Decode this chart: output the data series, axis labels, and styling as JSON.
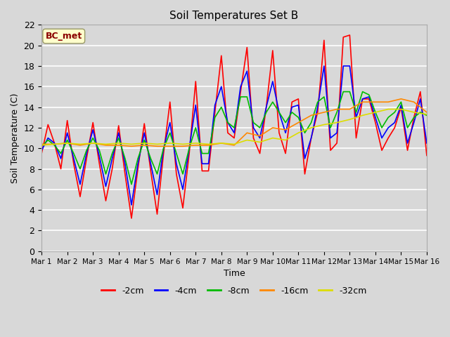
{
  "title": "Soil Temperatures Set B",
  "xlabel": "Time",
  "ylabel": "Soil Temperature (C)",
  "annotation": "BC_met",
  "ylim": [
    0,
    22
  ],
  "xlim": [
    0,
    15
  ],
  "x_tick_labels": [
    "Mar 1",
    "Mar 2",
    "Mar 3",
    "Mar 4",
    "Mar 5",
    "Mar 6",
    "Mar 7",
    "Mar 8",
    "Mar 9",
    "Mar 10",
    "Mar 11",
    "Mar 12",
    "Mar 13",
    "Mar 14",
    "Mar 15",
    "Mar 16"
  ],
  "fig_facecolor": "#d8d8d8",
  "plot_facecolor": "#d8d8d8",
  "grid_color": "#ffffff",
  "series": [
    {
      "label": "-2cm",
      "color": "#ff0000",
      "x": [
        0,
        0.25,
        0.5,
        0.75,
        1.0,
        1.25,
        1.5,
        1.75,
        2.0,
        2.25,
        2.5,
        2.75,
        3.0,
        3.25,
        3.5,
        3.75,
        4.0,
        4.25,
        4.5,
        4.75,
        5.0,
        5.25,
        5.5,
        5.75,
        6.0,
        6.25,
        6.5,
        6.75,
        7.0,
        7.25,
        7.5,
        7.75,
        8.0,
        8.25,
        8.5,
        8.75,
        9.0,
        9.25,
        9.5,
        9.75,
        10.0,
        10.25,
        10.5,
        10.75,
        11.0,
        11.25,
        11.5,
        11.75,
        12.0,
        12.25,
        12.5,
        12.75,
        13.0,
        13.25,
        13.5,
        13.75,
        14.0,
        14.25,
        14.5,
        14.75,
        15.0
      ],
      "y": [
        9.5,
        12.3,
        10.5,
        8.0,
        12.7,
        8.5,
        5.3,
        9.0,
        12.5,
        8.5,
        4.9,
        8.0,
        12.2,
        7.5,
        3.2,
        8.0,
        12.4,
        7.8,
        3.6,
        9.5,
        14.5,
        7.5,
        4.2,
        9.5,
        16.5,
        7.8,
        7.8,
        13.5,
        19.0,
        11.5,
        11.0,
        15.5,
        19.8,
        11.0,
        9.5,
        14.0,
        19.5,
        11.5,
        9.5,
        14.5,
        14.8,
        7.5,
        11.0,
        13.5,
        20.5,
        9.8,
        10.5,
        20.8,
        21.0,
        11.0,
        14.8,
        14.8,
        12.5,
        9.8,
        11.0,
        12.0,
        14.0,
        9.8,
        13.0,
        15.5,
        9.3
      ]
    },
    {
      "label": "-4cm",
      "color": "#0000ff",
      "x": [
        0,
        0.25,
        0.5,
        0.75,
        1.0,
        1.25,
        1.5,
        1.75,
        2.0,
        2.25,
        2.5,
        2.75,
        3.0,
        3.25,
        3.5,
        3.75,
        4.0,
        4.25,
        4.5,
        4.75,
        5.0,
        5.25,
        5.5,
        5.75,
        6.0,
        6.25,
        6.5,
        6.75,
        7.0,
        7.25,
        7.5,
        7.75,
        8.0,
        8.25,
        8.5,
        8.75,
        9.0,
        9.25,
        9.5,
        9.75,
        10.0,
        10.25,
        10.5,
        10.75,
        11.0,
        11.25,
        11.5,
        11.75,
        12.0,
        12.25,
        12.5,
        12.75,
        13.0,
        13.25,
        13.5,
        13.75,
        14.0,
        14.25,
        14.5,
        14.75,
        15.0
      ],
      "y": [
        9.8,
        11.0,
        10.5,
        9.0,
        11.5,
        9.0,
        6.5,
        9.5,
        11.8,
        9.2,
        6.3,
        9.0,
        11.5,
        8.5,
        4.5,
        8.5,
        11.5,
        8.5,
        5.5,
        10.0,
        12.5,
        8.5,
        6.0,
        10.0,
        14.2,
        8.5,
        8.5,
        14.2,
        16.0,
        12.5,
        11.5,
        16.0,
        17.5,
        12.0,
        11.0,
        14.0,
        16.5,
        13.5,
        11.5,
        14.0,
        14.2,
        9.0,
        11.0,
        14.0,
        18.0,
        11.0,
        11.5,
        18.0,
        18.0,
        13.0,
        14.8,
        15.0,
        13.0,
        11.0,
        12.0,
        12.5,
        14.2,
        10.5,
        12.5,
        14.8,
        10.5
      ]
    },
    {
      "label": "-8cm",
      "color": "#00bb00",
      "x": [
        0,
        0.25,
        0.5,
        0.75,
        1.0,
        1.25,
        1.5,
        1.75,
        2.0,
        2.25,
        2.5,
        2.75,
        3.0,
        3.25,
        3.5,
        3.75,
        4.0,
        4.25,
        4.5,
        4.75,
        5.0,
        5.25,
        5.5,
        5.75,
        6.0,
        6.25,
        6.5,
        6.75,
        7.0,
        7.25,
        7.5,
        7.75,
        8.0,
        8.25,
        8.5,
        8.75,
        9.0,
        9.25,
        9.5,
        9.75,
        10.0,
        10.25,
        10.5,
        10.75,
        11.0,
        11.25,
        11.5,
        11.75,
        12.0,
        12.25,
        12.5,
        12.75,
        13.0,
        13.25,
        13.5,
        13.75,
        14.0,
        14.25,
        14.5,
        14.75,
        15.0
      ],
      "y": [
        10.2,
        10.8,
        10.3,
        9.5,
        10.8,
        9.5,
        8.0,
        9.8,
        11.0,
        9.8,
        7.5,
        9.5,
        11.0,
        9.0,
        6.5,
        9.0,
        10.8,
        9.0,
        7.5,
        10.0,
        11.5,
        9.5,
        7.5,
        10.0,
        12.0,
        9.5,
        9.5,
        13.0,
        14.0,
        12.5,
        12.0,
        15.0,
        15.0,
        12.5,
        12.0,
        13.5,
        14.5,
        13.5,
        12.5,
        13.5,
        13.0,
        11.5,
        12.5,
        14.5,
        15.0,
        12.0,
        13.5,
        15.5,
        15.5,
        13.5,
        15.5,
        15.2,
        13.5,
        12.0,
        13.0,
        13.5,
        14.5,
        12.0,
        13.0,
        13.5,
        13.2
      ]
    },
    {
      "label": "-16cm",
      "color": "#ff8800",
      "x": [
        0,
        0.5,
        1.0,
        1.5,
        2.0,
        2.5,
        3.0,
        3.5,
        4.0,
        4.5,
        5.0,
        5.5,
        6.0,
        6.5,
        7.0,
        7.5,
        8.0,
        8.5,
        9.0,
        9.5,
        10.0,
        10.5,
        11.0,
        11.5,
        12.0,
        12.5,
        13.0,
        13.5,
        14.0,
        14.5,
        15.0
      ],
      "y": [
        10.4,
        10.4,
        10.5,
        10.3,
        10.5,
        10.3,
        10.3,
        10.2,
        10.3,
        10.2,
        10.2,
        10.2,
        10.3,
        10.3,
        10.5,
        10.3,
        11.5,
        11.2,
        12.0,
        11.8,
        12.5,
        13.2,
        13.5,
        13.8,
        13.8,
        14.5,
        14.5,
        14.5,
        14.8,
        14.5,
        13.5
      ]
    },
    {
      "label": "-32cm",
      "color": "#dddd00",
      "x": [
        0,
        0.5,
        1.0,
        1.5,
        2.0,
        2.5,
        3.0,
        3.5,
        4.0,
        4.5,
        5.0,
        5.5,
        6.0,
        6.5,
        7.0,
        7.5,
        8.0,
        8.5,
        9.0,
        9.5,
        10.0,
        10.5,
        11.0,
        11.5,
        12.0,
        12.5,
        13.0,
        13.5,
        14.0,
        14.5,
        15.0
      ],
      "y": [
        10.3,
        10.4,
        10.5,
        10.4,
        10.5,
        10.4,
        10.5,
        10.4,
        10.5,
        10.4,
        10.5,
        10.4,
        10.5,
        10.4,
        10.5,
        10.4,
        10.8,
        10.6,
        11.0,
        10.8,
        11.5,
        12.0,
        12.3,
        12.5,
        12.8,
        13.2,
        13.5,
        13.8,
        13.8,
        13.5,
        13.3
      ]
    }
  ]
}
